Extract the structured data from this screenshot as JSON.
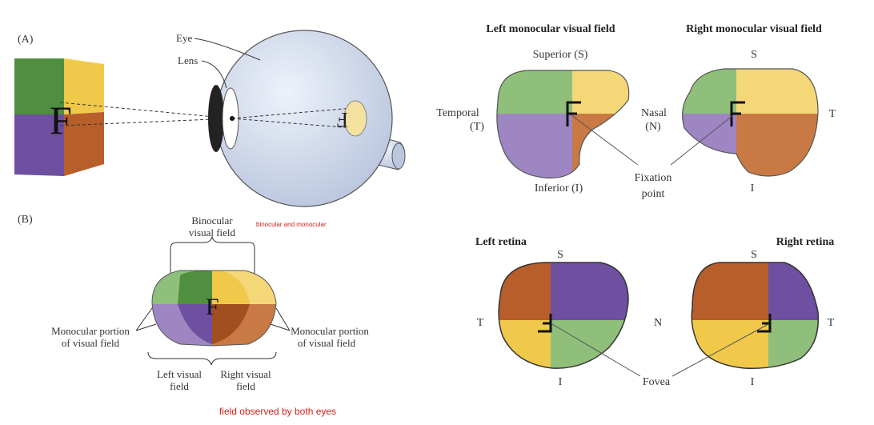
{
  "panel_a": {
    "label": "(A)",
    "stimulus_letter": "F",
    "retina_letter": "F",
    "eye_label": "Eye",
    "lens_label": "Lens"
  },
  "panel_b": {
    "label": "(B)",
    "binocular_line1": "Binocular",
    "binocular_line2": "visual field",
    "annotation_top": "binocular and monocular",
    "left_mono_line1": "Monocular portion",
    "left_mono_line2": "of visual field",
    "right_mono_line1": "Monocular portion",
    "right_mono_line2": "of visual field",
    "left_field_line1": "Left visual",
    "left_field_line2": "field",
    "right_field_line1": "Right visual",
    "right_field_line2": "field",
    "annotation_bottom": "field observed by both eyes",
    "letter": "F"
  },
  "visual_fields": {
    "left_title": "Left monocular visual field",
    "right_title": "Right monocular visual field",
    "superior": "Superior (S)",
    "inferior": "Inferior (I)",
    "temporal_line1": "Temporal",
    "temporal_line2": "(T)",
    "nasal_line1": "Nasal",
    "nasal_line2": "(N)",
    "fixation_line1": "Fixation",
    "fixation_line2": "point",
    "right_s": "S",
    "right_t": "T",
    "right_i": "I"
  },
  "retinas": {
    "left_title": "Left retina",
    "right_title": "Right retina",
    "left_s": "S",
    "left_t": "T",
    "left_i": "I",
    "n": "N",
    "right_s": "S",
    "right_t": "T",
    "right_i": "I",
    "fovea": "Fovea"
  },
  "colors": {
    "green": "#4f8f3f",
    "light_green": "#8fbf7a",
    "yellow": "#f0c94a",
    "light_yellow": "#f4d878",
    "purple": "#6f4f9f",
    "light_purple": "#9d86c2",
    "orange": "#b85e2a",
    "light_orange": "#c97a44",
    "eye_blue": "#cdd8ea",
    "annotation_red": "#d0201a"
  }
}
